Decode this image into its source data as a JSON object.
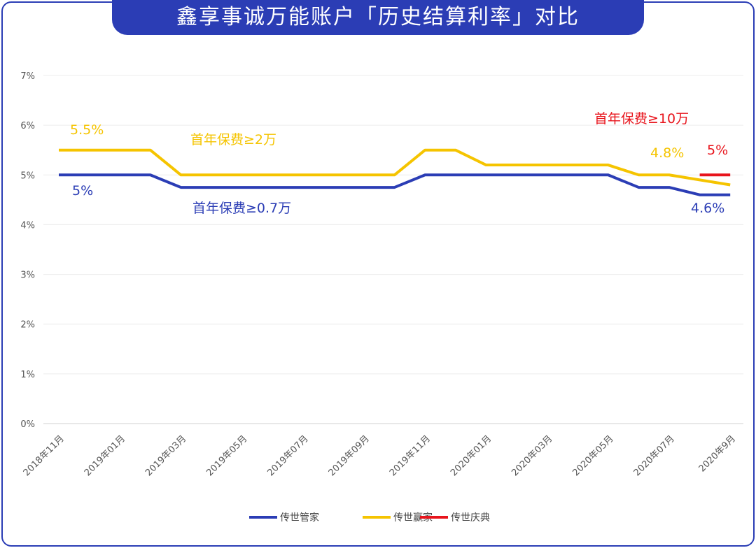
{
  "title": "鑫享事诚万能账户「历史结算利率」对比",
  "chart_data": {
    "type": "line",
    "title": "鑫享事诚万能账户「历史结算利率」对比",
    "x": [
      "2018-11",
      "2018-12",
      "2019-01",
      "2019-02",
      "2019-03",
      "2019-04",
      "2019-05",
      "2019-06",
      "2019-07",
      "2019-08",
      "2019-09",
      "2019-10",
      "2019-11",
      "2019-12",
      "2020-01",
      "2020-02",
      "2020-03",
      "2020-04",
      "2020-05",
      "2020-06",
      "2020-07",
      "2020-08",
      "2020-09"
    ],
    "x_tick_labels": [
      "2018年11月",
      "2019年01月",
      "2019年03月",
      "2019年05月",
      "2019年07月",
      "2019年09月",
      "2019年11月",
      "2020年01月",
      "2020年03月",
      "2020年05月",
      "2020年07月",
      "2020年9月"
    ],
    "y_tick_labels": [
      "0%",
      "1%",
      "2%",
      "3%",
      "4%",
      "5%",
      "6%",
      "7%"
    ],
    "ylim": [
      0,
      7
    ],
    "ylabel": "",
    "xlabel": "",
    "grid": true,
    "legend_position": "bottom",
    "series": [
      {
        "name": "传世管家",
        "color": "#2b3db5",
        "values": [
          5,
          5,
          5,
          5,
          4.75,
          4.75,
          4.75,
          4.75,
          4.75,
          4.75,
          4.75,
          4.75,
          5,
          5,
          5,
          5,
          5,
          5,
          5,
          4.75,
          4.75,
          4.6,
          4.6
        ]
      },
      {
        "name": "传世赢家",
        "color": "#f5c400",
        "values": [
          5.5,
          5.5,
          5.5,
          5.5,
          5,
          5,
          5,
          5,
          5,
          5,
          5,
          5,
          5.5,
          5.5,
          5.2,
          5.2,
          5.2,
          5.2,
          5.2,
          5,
          5,
          4.9,
          4.8
        ]
      },
      {
        "name": "传世庆典",
        "color": "#e8141c",
        "values": [
          null,
          null,
          null,
          null,
          null,
          null,
          null,
          null,
          null,
          null,
          null,
          null,
          null,
          null,
          null,
          null,
          null,
          null,
          null,
          null,
          null,
          5,
          5
        ]
      }
    ],
    "annotations": [
      {
        "text": "5.5%",
        "color": "#f5c400"
      },
      {
        "text": "首年保费≥2万",
        "color": "#f5c400"
      },
      {
        "text": "5%",
        "color": "#2b3db5"
      },
      {
        "text": "首年保费≥0.7万",
        "color": "#2b3db5"
      },
      {
        "text": "首年保费≥10万",
        "color": "#e8141c"
      },
      {
        "text": "4.8%",
        "color": "#f5c400"
      },
      {
        "text": "5%",
        "color": "#e8141c"
      },
      {
        "text": "4.6%",
        "color": "#2b3db5"
      }
    ]
  }
}
